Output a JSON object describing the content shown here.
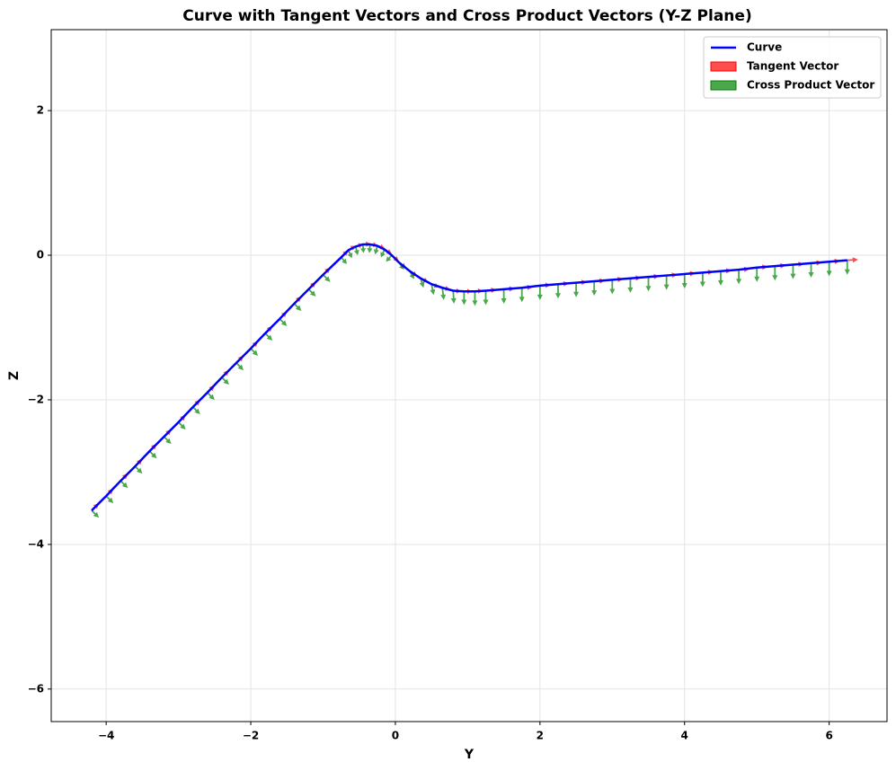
{
  "chart_data": {
    "type": "quiver",
    "title": "Curve with Tangent Vectors and Cross Product Vectors (Y-Z Plane)",
    "x_label": "Y",
    "y_label": "Z",
    "xlim": [
      -4.76,
      6.8
    ],
    "ylim": [
      -6.45,
      3.12
    ],
    "xticks": [
      {
        "value": -4,
        "label": "−4"
      },
      {
        "value": -2,
        "label": "−2"
      },
      0,
      2,
      4,
      6
    ],
    "yticks": [
      {
        "value": -6,
        "label": "−6"
      },
      {
        "value": -4,
        "label": "−4"
      },
      {
        "value": -2,
        "label": "−2"
      },
      0,
      2
    ],
    "grid": true,
    "legend": "upper right",
    "series": [
      {
        "name": "Curve",
        "kind": "line",
        "color": "#0000ff",
        "x": [
          -4.2,
          -4.0,
          -3.8,
          -3.6,
          -3.4,
          -3.2,
          -3.0,
          -2.8,
          -2.6,
          -2.4,
          -2.2,
          -2.0,
          -1.8,
          -1.6,
          -1.4,
          -1.2,
          -1.0,
          -0.75,
          -0.65,
          -0.55,
          -0.45,
          -0.35,
          -0.25,
          -0.15,
          -0.05,
          0.05,
          0.2,
          0.35,
          0.5,
          0.65,
          0.8,
          0.95,
          1.1,
          1.25,
          1.5,
          1.75,
          2.0,
          2.25,
          2.5,
          2.75,
          3.0,
          3.25,
          3.5,
          3.75,
          4.0,
          4.25,
          4.5,
          4.75,
          5.0,
          5.25,
          5.5,
          5.75,
          6.0,
          6.25
        ],
        "y": [
          -3.53,
          -3.33,
          -3.12,
          -2.92,
          -2.71,
          -2.51,
          -2.31,
          -2.1,
          -1.9,
          -1.69,
          -1.49,
          -1.29,
          -1.08,
          -0.88,
          -0.67,
          -0.47,
          -0.27,
          -0.03,
          0.07,
          0.12,
          0.15,
          0.15,
          0.13,
          0.08,
          0.0,
          -0.1,
          -0.22,
          -0.32,
          -0.4,
          -0.45,
          -0.49,
          -0.5,
          -0.5,
          -0.49,
          -0.47,
          -0.45,
          -0.42,
          -0.4,
          -0.38,
          -0.36,
          -0.34,
          -0.32,
          -0.3,
          -0.28,
          -0.26,
          -0.24,
          -0.22,
          -0.2,
          -0.17,
          -0.15,
          -0.13,
          -0.11,
          -0.09,
          -0.07
        ]
      },
      {
        "name": "Tangent Vector",
        "kind": "arrows",
        "color": "#ff0000",
        "alpha": 0.7,
        "x": [
          -4.2,
          -4.0,
          -3.8,
          -3.6,
          -3.4,
          -3.2,
          -3.0,
          -2.8,
          -2.6,
          -2.4,
          -2.2,
          -2.0,
          -1.8,
          -1.6,
          -1.4,
          -1.2,
          -1.0,
          -0.75,
          -0.65,
          -0.55,
          -0.45,
          -0.35,
          -0.25,
          -0.15,
          -0.05,
          0.05,
          0.2,
          0.35,
          0.5,
          0.65,
          0.8,
          0.95,
          1.1,
          1.25,
          1.5,
          1.75,
          2.0,
          2.25,
          2.5,
          2.75,
          3.0,
          3.25,
          3.5,
          3.75,
          4.0,
          4.25,
          4.5,
          4.75,
          5.0,
          5.25,
          5.5,
          5.75,
          6.0,
          6.25
        ],
        "y": [
          -3.53,
          -3.33,
          -3.12,
          -2.92,
          -2.71,
          -2.51,
          -2.31,
          -2.1,
          -1.9,
          -1.69,
          -1.49,
          -1.29,
          -1.08,
          -0.88,
          -0.67,
          -0.47,
          -0.27,
          -0.03,
          0.07,
          0.12,
          0.15,
          0.15,
          0.13,
          0.08,
          0.0,
          -0.1,
          -0.22,
          -0.32,
          -0.4,
          -0.45,
          -0.49,
          -0.5,
          -0.5,
          -0.49,
          -0.47,
          -0.45,
          -0.42,
          -0.4,
          -0.38,
          -0.36,
          -0.34,
          -0.32,
          -0.3,
          -0.28,
          -0.26,
          -0.24,
          -0.22,
          -0.2,
          -0.17,
          -0.15,
          -0.13,
          -0.11,
          -0.09,
          -0.07
        ],
        "u": [
          0.1,
          0.1,
          0.1,
          0.1,
          0.1,
          0.1,
          0.1,
          0.1,
          0.1,
          0.1,
          0.1,
          0.1,
          0.1,
          0.1,
          0.1,
          0.1,
          0.1,
          0.1,
          0.1,
          0.1,
          0.1,
          0.1,
          0.1,
          0.1,
          0.1,
          0.1,
          0.1,
          0.1,
          0.1,
          0.1,
          0.1,
          0.1,
          0.1,
          0.15,
          0.15,
          0.15,
          0.15,
          0.15,
          0.15,
          0.15,
          0.15,
          0.15,
          0.15,
          0.15,
          0.15,
          0.15,
          0.15,
          0.15,
          0.15,
          0.15,
          0.15,
          0.15,
          0.15,
          0.15
        ],
        "v": [
          0.1,
          0.1,
          0.1,
          0.1,
          0.1,
          0.1,
          0.1,
          0.1,
          0.1,
          0.1,
          0.1,
          0.1,
          0.1,
          0.1,
          0.1,
          0.1,
          0.1,
          0.1,
          0.06,
          0.03,
          0.01,
          -0.01,
          -0.03,
          -0.06,
          -0.09,
          -0.08,
          -0.07,
          -0.05,
          -0.04,
          -0.02,
          -0.01,
          0,
          0.01,
          0.01,
          0.01,
          0.01,
          0.01,
          0.01,
          0.01,
          0.01,
          0.01,
          0.01,
          0.01,
          0.01,
          0.01,
          0.01,
          0.01,
          0.01,
          0.01,
          0.01,
          0.01,
          0.01,
          0.01,
          0.01
        ]
      },
      {
        "name": "Cross Product Vector",
        "kind": "arrows",
        "color": "#008000",
        "alpha": 0.7,
        "x": [
          -4.2,
          -4.0,
          -3.8,
          -3.6,
          -3.4,
          -3.2,
          -3.0,
          -2.8,
          -2.6,
          -2.4,
          -2.2,
          -2.0,
          -1.8,
          -1.6,
          -1.4,
          -1.2,
          -1.0,
          -0.75,
          -0.65,
          -0.55,
          -0.45,
          -0.35,
          -0.25,
          -0.15,
          -0.05,
          0.05,
          0.2,
          0.35,
          0.5,
          0.65,
          0.8,
          0.95,
          1.1,
          1.25,
          1.5,
          1.75,
          2.0,
          2.25,
          2.5,
          2.75,
          3.0,
          3.25,
          3.5,
          3.75,
          4.0,
          4.25,
          4.5,
          4.75,
          5.0,
          5.25,
          5.5,
          5.75,
          6.0,
          6.25
        ],
        "y": [
          -3.53,
          -3.33,
          -3.12,
          -2.92,
          -2.71,
          -2.51,
          -2.31,
          -2.1,
          -1.9,
          -1.69,
          -1.49,
          -1.29,
          -1.08,
          -0.88,
          -0.67,
          -0.47,
          -0.27,
          -0.03,
          0.07,
          0.12,
          0.15,
          0.15,
          0.13,
          0.08,
          0.0,
          -0.1,
          -0.22,
          -0.32,
          -0.4,
          -0.45,
          -0.49,
          -0.5,
          -0.5,
          -0.49,
          -0.47,
          -0.45,
          -0.42,
          -0.4,
          -0.38,
          -0.36,
          -0.34,
          -0.32,
          -0.3,
          -0.28,
          -0.26,
          -0.24,
          -0.22,
          -0.2,
          -0.17,
          -0.15,
          -0.13,
          -0.11,
          -0.09,
          -0.07
        ],
        "u": [
          0.1,
          0.1,
          0.1,
          0.1,
          0.1,
          0.1,
          0.1,
          0.1,
          0.1,
          0.1,
          0.1,
          0.1,
          0.1,
          0.1,
          0.1,
          0.1,
          0.1,
          0.08,
          0.05,
          0.03,
          0.01,
          -0.01,
          -0.03,
          -0.05,
          -0.08,
          0.07,
          0.06,
          0.04,
          0.03,
          0.02,
          0.01,
          0,
          0,
          0,
          0,
          0,
          0,
          0,
          0,
          0,
          0,
          0,
          0,
          0,
          0,
          0,
          0,
          0,
          0,
          0,
          0,
          0,
          0,
          0
        ],
        "v": [
          -0.1,
          -0.1,
          -0.1,
          -0.1,
          -0.1,
          -0.1,
          -0.1,
          -0.1,
          -0.1,
          -0.1,
          -0.1,
          -0.1,
          -0.1,
          -0.1,
          -0.1,
          -0.1,
          -0.1,
          -0.09,
          -0.11,
          -0.12,
          -0.12,
          -0.12,
          -0.12,
          -0.11,
          -0.09,
          -0.1,
          -0.11,
          -0.13,
          -0.15,
          -0.17,
          -0.18,
          -0.19,
          -0.2,
          -0.2,
          -0.2,
          -0.2,
          -0.2,
          -0.2,
          -0.2,
          -0.2,
          -0.2,
          -0.2,
          -0.2,
          -0.2,
          -0.2,
          -0.2,
          -0.2,
          -0.2,
          -0.2,
          -0.2,
          -0.2,
          -0.2,
          -0.2,
          -0.2
        ]
      }
    ]
  }
}
